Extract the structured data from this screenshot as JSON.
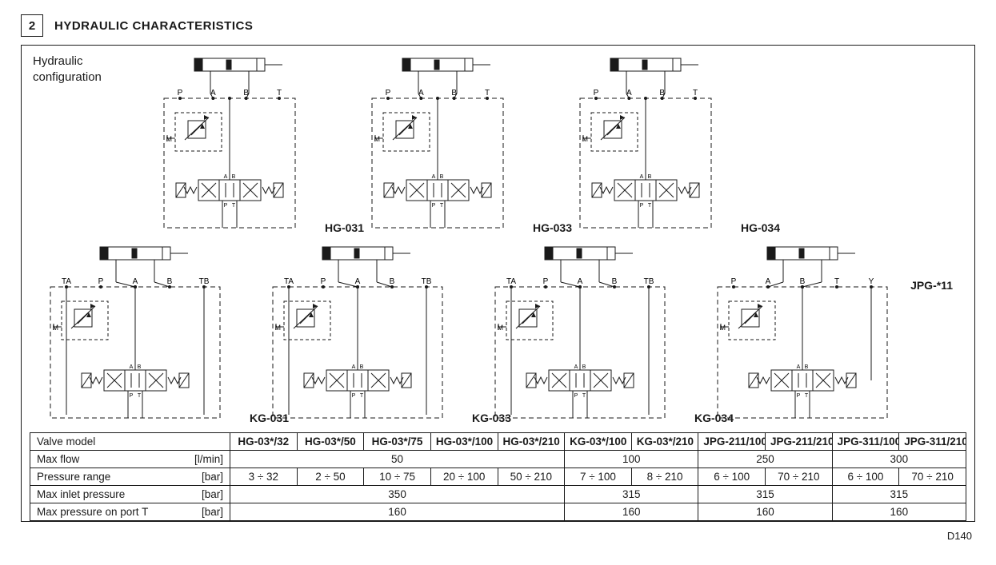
{
  "section": {
    "number": "2",
    "title": "HYDRAULIC CHARACTERISTICS"
  },
  "config_label_line1": "Hydraulic",
  "config_label_line2": "configuration",
  "doc_id": "D140",
  "diagrams": {
    "row1": [
      {
        "id": "hg031",
        "label": "HG-031",
        "ports": [
          "P",
          "A",
          "B",
          "T"
        ],
        "type": "hg"
      },
      {
        "id": "hg033",
        "label": "HG-033",
        "ports": [
          "P",
          "A",
          "B",
          "T"
        ],
        "type": "hg"
      },
      {
        "id": "hg034",
        "label": "HG-034",
        "ports": [
          "P",
          "A",
          "B",
          "T"
        ],
        "type": "hg"
      }
    ],
    "row2": [
      {
        "id": "kg031",
        "label": "KG-031",
        "ports": [
          "TA",
          "P",
          "A",
          "B",
          "TB"
        ],
        "type": "kg"
      },
      {
        "id": "kg033",
        "label": "KG-033",
        "ports": [
          "TA",
          "P",
          "A",
          "B",
          "TB"
        ],
        "type": "kg"
      },
      {
        "id": "kg034",
        "label": "KG-034",
        "ports": [
          "TA",
          "P",
          "A",
          "B",
          "TB"
        ],
        "type": "kg"
      },
      {
        "id": "jpg11",
        "label": "JPG-*11",
        "ports": [
          "P",
          "A",
          "B",
          "T",
          "Y"
        ],
        "type": "jpg",
        "label_pos": "tr"
      }
    ],
    "style": {
      "stroke": "#1a1a1a",
      "stroke_width": 1,
      "svg_w_hg": 200,
      "svg_h_hg": 230,
      "svg_w_kg": 248,
      "svg_h_kg": 232,
      "port_font_size": 10,
      "label_font_weight": 700
    }
  },
  "table": {
    "header_label": "Valve model",
    "model_cols": [
      "HG-03*/32",
      "HG-03*/50",
      "HG-03*/75",
      "HG-03*/100",
      "HG-03*/210",
      "KG-03*/100",
      "KG-03*/210",
      "JPG-211/100",
      "JPG-211/210",
      "JPG-311/100",
      "JPG-311/210"
    ],
    "rows": [
      {
        "label": "Max flow",
        "unit": "[l/min]",
        "cells": [
          {
            "span": 5,
            "value": "50"
          },
          {
            "span": 2,
            "value": "100"
          },
          {
            "span": 2,
            "value": "250"
          },
          {
            "span": 2,
            "value": "300"
          }
        ]
      },
      {
        "label": "Pressure range",
        "unit": "[bar]",
        "cells": [
          {
            "span": 1,
            "value": "3 ÷ 32"
          },
          {
            "span": 1,
            "value": "2 ÷ 50"
          },
          {
            "span": 1,
            "value": "10 ÷ 75"
          },
          {
            "span": 1,
            "value": "20 ÷ 100"
          },
          {
            "span": 1,
            "value": "50 ÷ 210"
          },
          {
            "span": 1,
            "value": "7 ÷ 100"
          },
          {
            "span": 1,
            "value": "8 ÷ 210"
          },
          {
            "span": 1,
            "value": "6 ÷ 100"
          },
          {
            "span": 1,
            "value": "70 ÷ 210"
          },
          {
            "span": 1,
            "value": "6 ÷ 100"
          },
          {
            "span": 1,
            "value": "70 ÷ 210"
          }
        ]
      },
      {
        "label": "Max inlet pressure",
        "unit": "[bar]",
        "cells": [
          {
            "span": 5,
            "value": "350"
          },
          {
            "span": 2,
            "value": "315"
          },
          {
            "span": 2,
            "value": "315"
          },
          {
            "span": 2,
            "value": "315"
          }
        ]
      },
      {
        "label": "Max pressure on port T",
        "unit": "[bar]",
        "cells": [
          {
            "span": 5,
            "value": "160"
          },
          {
            "span": 2,
            "value": "160"
          },
          {
            "span": 2,
            "value": "160"
          },
          {
            "span": 2,
            "value": "160"
          }
        ]
      }
    ]
  }
}
